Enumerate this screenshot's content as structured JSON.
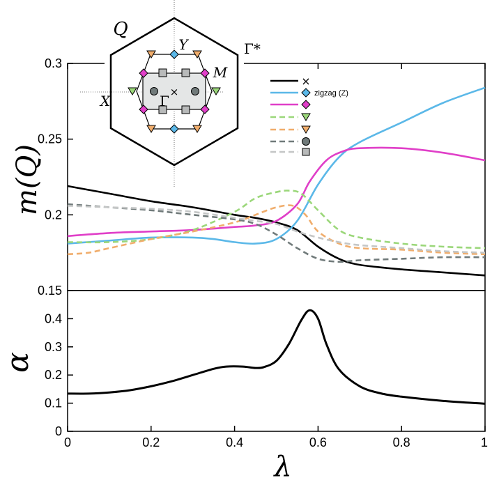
{
  "chart_data": [
    {
      "type": "line",
      "ylabel": "m(Q)",
      "xlim": [
        0,
        1
      ],
      "ylim": [
        0.15,
        0.3
      ],
      "yticks": [
        {
          "value": 0.15,
          "label": "0.15"
        },
        {
          "value": 0.2,
          "label": "0.2"
        },
        {
          "value": 0.25,
          "label": "0.25"
        },
        {
          "value": 0.3,
          "label": "0.3"
        }
      ],
      "series": [
        {
          "name": "×",
          "color": "#000000",
          "dash": "",
          "x": [
            0,
            0.1,
            0.2,
            0.3,
            0.4,
            0.45,
            0.5,
            0.55,
            0.6,
            0.65,
            0.7,
            0.8,
            0.9,
            1.0
          ],
          "y": [
            0.219,
            0.214,
            0.209,
            0.205,
            0.2,
            0.198,
            0.195,
            0.19,
            0.179,
            0.171,
            0.167,
            0.164,
            0.162,
            0.16
          ]
        },
        {
          "name": "zigzag (Z)",
          "color": "#5bb8e8",
          "dash": "",
          "x": [
            0,
            0.1,
            0.2,
            0.3,
            0.35,
            0.4,
            0.45,
            0.5,
            0.55,
            0.6,
            0.65,
            0.7,
            0.8,
            0.9,
            1.0
          ],
          "y": [
            0.181,
            0.183,
            0.185,
            0.185,
            0.184,
            0.182,
            0.181,
            0.184,
            0.196,
            0.22,
            0.238,
            0.248,
            0.261,
            0.274,
            0.284
          ]
        },
        {
          "name": "",
          "color": "#e03fc8",
          "dash": "",
          "x": [
            0,
            0.1,
            0.2,
            0.3,
            0.4,
            0.45,
            0.5,
            0.55,
            0.58,
            0.62,
            0.66,
            0.7,
            0.8,
            0.9,
            1.0
          ],
          "y": [
            0.186,
            0.188,
            0.189,
            0.19,
            0.192,
            0.193,
            0.196,
            0.207,
            0.222,
            0.236,
            0.242,
            0.244,
            0.244,
            0.241,
            0.236
          ]
        },
        {
          "name": "",
          "color": "#9bd77a",
          "dash": "8,5",
          "x": [
            0,
            0.1,
            0.2,
            0.3,
            0.4,
            0.45,
            0.5,
            0.53,
            0.56,
            0.6,
            0.65,
            0.7,
            0.8,
            0.9,
            1.0
          ],
          "y": [
            0.182,
            0.182,
            0.184,
            0.19,
            0.202,
            0.211,
            0.215,
            0.216,
            0.214,
            0.203,
            0.19,
            0.185,
            0.181,
            0.179,
            0.178
          ]
        },
        {
          "name": "",
          "color": "#f0ad6c",
          "dash": "8,5",
          "x": [
            0,
            0.05,
            0.1,
            0.2,
            0.3,
            0.4,
            0.45,
            0.5,
            0.54,
            0.57,
            0.6,
            0.65,
            0.7,
            0.8,
            0.9,
            1.0
          ],
          "y": [
            0.174,
            0.175,
            0.178,
            0.184,
            0.189,
            0.195,
            0.2,
            0.205,
            0.206,
            0.2,
            0.189,
            0.181,
            0.178,
            0.177,
            0.175,
            0.174
          ]
        },
        {
          "name": "",
          "color": "#707a7a",
          "dash": "8,5",
          "x": [
            0,
            0.1,
            0.2,
            0.3,
            0.4,
            0.45,
            0.5,
            0.55,
            0.6,
            0.65,
            0.7,
            0.8,
            0.9,
            1.0
          ],
          "y": [
            0.207,
            0.205,
            0.203,
            0.2,
            0.197,
            0.194,
            0.187,
            0.178,
            0.171,
            0.169,
            0.17,
            0.171,
            0.172,
            0.172
          ]
        },
        {
          "name": "",
          "color": "#c4c6c6",
          "dash": "8,5",
          "x": [
            0,
            0.1,
            0.2,
            0.3,
            0.4,
            0.45,
            0.5,
            0.55,
            0.6,
            0.65,
            0.7,
            0.8,
            0.9,
            1.0
          ],
          "y": [
            0.206,
            0.205,
            0.204,
            0.202,
            0.198,
            0.196,
            0.194,
            0.189,
            0.185,
            0.182,
            0.18,
            0.178,
            0.176,
            0.175
          ]
        }
      ]
    },
    {
      "type": "line",
      "xlabel": "λ",
      "ylabel": "α",
      "xlim": [
        0,
        1
      ],
      "ylim": [
        0,
        0.5
      ],
      "xticks": [
        {
          "value": 0,
          "label": "0"
        },
        {
          "value": 0.2,
          "label": "0.2"
        },
        {
          "value": 0.4,
          "label": "0.4"
        },
        {
          "value": 0.6,
          "label": "0.6"
        },
        {
          "value": 0.8,
          "label": "0.8"
        },
        {
          "value": 1,
          "label": "1"
        }
      ],
      "yticks": [
        {
          "value": 0,
          "label": "0"
        },
        {
          "value": 0.1,
          "label": "0.1"
        },
        {
          "value": 0.2,
          "label": "0.2"
        },
        {
          "value": 0.3,
          "label": "0.3"
        },
        {
          "value": 0.4,
          "label": "0.4"
        }
      ],
      "series": [
        {
          "name": "α",
          "color": "#000000",
          "x": [
            0,
            0.05,
            0.1,
            0.15,
            0.2,
            0.25,
            0.3,
            0.35,
            0.38,
            0.42,
            0.45,
            0.47,
            0.5,
            0.53,
            0.56,
            0.58,
            0.6,
            0.62,
            0.65,
            0.7,
            0.75,
            0.8,
            0.9,
            1.0
          ],
          "y": [
            0.134,
            0.134,
            0.138,
            0.146,
            0.16,
            0.178,
            0.2,
            0.222,
            0.23,
            0.23,
            0.225,
            0.228,
            0.25,
            0.31,
            0.395,
            0.43,
            0.4,
            0.31,
            0.22,
            0.16,
            0.135,
            0.123,
            0.108,
            0.098
          ]
        }
      ]
    }
  ],
  "inset": {
    "label_Q": "Q",
    "label_gamma_star": "Γ*",
    "label_Y": "Y",
    "label_M": "M",
    "label_X": "X",
    "label_Gamma": "Γ",
    "label_cross": "×"
  },
  "legend": {
    "zigzag_label": "zigzag (Z)",
    "cross_symbol": "×"
  }
}
